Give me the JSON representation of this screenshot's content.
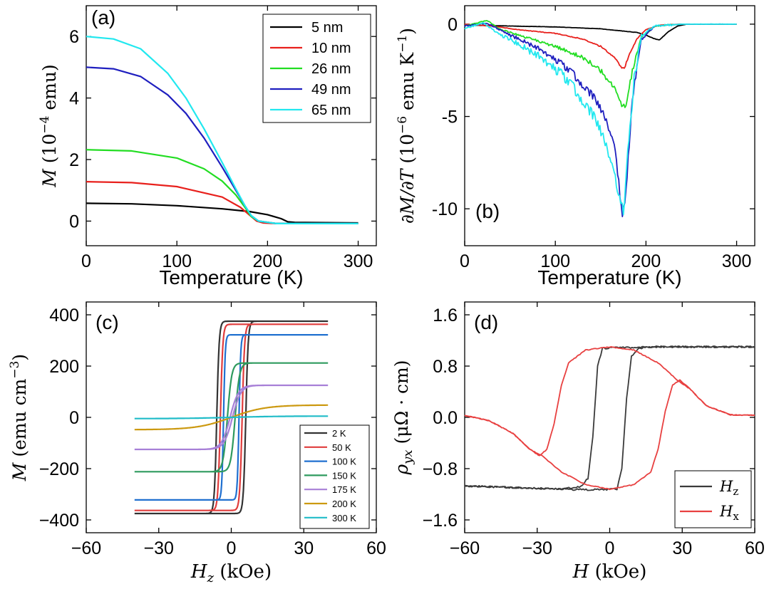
{
  "chart_data": [
    {
      "id": "a",
      "type": "line",
      "panel_label": "(a)",
      "xlabel": "Temperature (K)",
      "ylabel_main": "M",
      "ylabel_unit": "(10",
      "ylabel_exp": "−4",
      "ylabel_tail": " emu)",
      "xlim": [
        0,
        320
      ],
      "ylim": [
        -0.8,
        7
      ],
      "xticks": [
        "0",
        "100",
        "200",
        "300"
      ],
      "yticks": [
        "0",
        "2",
        "4",
        "6"
      ],
      "legend_position": "top-right",
      "series": [
        {
          "name": "5 nm",
          "color": "#000000",
          "x": [
            0,
            50,
            100,
            150,
            180,
            200,
            215,
            222,
            230,
            300
          ],
          "y": [
            0.58,
            0.56,
            0.5,
            0.4,
            0.31,
            0.21,
            0.08,
            -0.02,
            -0.04,
            -0.06
          ]
        },
        {
          "name": "10 nm",
          "color": "#e8201c",
          "x": [
            0,
            50,
            100,
            150,
            170,
            180,
            188,
            195,
            210,
            300
          ],
          "y": [
            1.28,
            1.25,
            1.12,
            0.78,
            0.45,
            0.2,
            0.0,
            -0.06,
            -0.08,
            -0.08
          ]
        },
        {
          "name": "26 nm",
          "color": "#22dd22",
          "x": [
            0,
            50,
            100,
            130,
            150,
            165,
            175,
            182,
            190,
            210,
            300
          ],
          "y": [
            2.32,
            2.28,
            2.05,
            1.7,
            1.3,
            0.85,
            0.45,
            0.15,
            0.0,
            -0.08,
            -0.08
          ]
        },
        {
          "name": "49 nm",
          "color": "#1f1fbf",
          "x": [
            0,
            30,
            60,
            90,
            110,
            130,
            150,
            165,
            175,
            182,
            190,
            210,
            300
          ],
          "y": [
            5.0,
            4.95,
            4.7,
            4.1,
            3.5,
            2.7,
            1.75,
            1.0,
            0.5,
            0.18,
            0.0,
            -0.08,
            -0.08
          ]
        },
        {
          "name": "65 nm",
          "color": "#22e8ef",
          "x": [
            0,
            30,
            60,
            90,
            110,
            130,
            150,
            165,
            175,
            182,
            190,
            210,
            300
          ],
          "y": [
            6.0,
            5.92,
            5.6,
            4.8,
            4.0,
            3.0,
            1.9,
            1.05,
            0.5,
            0.18,
            0.0,
            -0.08,
            -0.08
          ]
        }
      ]
    },
    {
      "id": "b",
      "type": "line",
      "panel_label": "(b)",
      "xlabel": "Temperature (K)",
      "ylabel_main": "∂M/∂T",
      "ylabel_unit": " (10",
      "ylabel_exp": "−6",
      "ylabel_tail": " emu K",
      "ylabel_exp2": "−1",
      "ylabel_close": ")",
      "xlim": [
        0,
        320
      ],
      "ylim": [
        -12,
        1
      ],
      "xticks": [
        "0",
        "100",
        "200",
        "300"
      ],
      "yticks": [
        "0",
        "-5",
        "-10"
      ],
      "series": [
        {
          "name": "5 nm",
          "color": "#000000",
          "x": [
            0,
            100,
            150,
            190,
            200,
            210,
            215,
            225,
            235,
            245,
            300
          ],
          "y": [
            -0.05,
            -0.15,
            -0.25,
            -0.45,
            -0.6,
            -0.8,
            -0.85,
            -0.4,
            -0.1,
            0.0,
            0.0
          ]
        },
        {
          "name": "10 nm",
          "color": "#e8201c",
          "x": [
            0,
            30,
            60,
            100,
            130,
            150,
            165,
            172,
            176,
            182,
            190,
            200,
            215,
            240,
            300
          ],
          "y": [
            0.0,
            -0.1,
            -0.3,
            -0.5,
            -0.8,
            -1.2,
            -1.8,
            -2.3,
            -2.4,
            -1.6,
            -0.8,
            -0.3,
            -0.05,
            0.0,
            0.0
          ]
        },
        {
          "name": "26 nm",
          "color": "#22dd22",
          "x": [
            0,
            25,
            40,
            60,
            100,
            130,
            150,
            165,
            172,
            178,
            185,
            195,
            210,
            240,
            300
          ],
          "y": [
            -0.1,
            0.2,
            -0.3,
            -0.6,
            -1.2,
            -1.8,
            -2.5,
            -3.4,
            -4.3,
            -4.4,
            -2.5,
            -0.7,
            -0.1,
            0.0,
            0.0
          ]
        },
        {
          "name": "49 nm",
          "color": "#1f1fbf",
          "x": [
            0,
            25,
            45,
            60,
            80,
            100,
            120,
            140,
            155,
            165,
            170,
            174,
            178,
            185,
            195,
            210,
            240,
            300
          ],
          "y": [
            -0.1,
            0.05,
            -0.5,
            -0.8,
            -1.3,
            -1.9,
            -2.7,
            -3.8,
            -5.0,
            -6.5,
            -8.5,
            -10.6,
            -9.0,
            -4.0,
            -0.8,
            -0.1,
            0.0,
            0.0
          ]
        },
        {
          "name": "65 nm",
          "color": "#22e8ef",
          "x": [
            0,
            20,
            40,
            60,
            80,
            100,
            120,
            140,
            155,
            165,
            172,
            175,
            180,
            187,
            195,
            210,
            240,
            300
          ],
          "y": [
            -0.2,
            0.05,
            -0.6,
            -1.1,
            -1.7,
            -2.4,
            -3.4,
            -4.8,
            -6.3,
            -8.0,
            -9.6,
            -10.2,
            -7.0,
            -3.0,
            -0.6,
            -0.1,
            0.0,
            0.0
          ]
        }
      ]
    },
    {
      "id": "c",
      "type": "line",
      "panel_label": "(c)",
      "xlabel_main": "H",
      "xlabel_sub": "z",
      "xlabel_tail": " (kOe)",
      "ylabel_main": "M",
      "ylabel_unit": " (emu cm",
      "ylabel_exp": "−3",
      "ylabel_close": ")",
      "xlim": [
        -60,
        60
      ],
      "ylim": [
        -450,
        450
      ],
      "xticks": [
        "−60",
        "−30",
        "0",
        "30",
        "60"
      ],
      "yticks": [
        "400",
        "200",
        "0",
        "−200",
        "−400"
      ],
      "legend_position": "bottom-right",
      "series": [
        {
          "name": "2 K",
          "color": "#333333",
          "Ms": 375,
          "Hc": 6,
          "w": 1.0
        },
        {
          "name": "50 K",
          "color": "#e03c3c",
          "Ms": 363,
          "Hc": 4.5,
          "w": 1.0
        },
        {
          "name": "100 K",
          "color": "#2070d0",
          "Ms": 322,
          "Hc": 3.2,
          "w": 0.7
        },
        {
          "name": "150 K",
          "color": "#2e9a5e",
          "Ms": 212,
          "Hc": 1.6,
          "w": 1.8
        },
        {
          "name": "175 K",
          "color": "#a77fd7",
          "Ms": 125,
          "Hc": 0.5,
          "w": 3.5
        },
        {
          "name": "200 K",
          "color": "#cc9910",
          "Ms": 48,
          "Hc": 0,
          "w": 14
        },
        {
          "name": "300 K",
          "color": "#20bcc8",
          "Ms": 5,
          "Hc": 0,
          "w": 20
        }
      ]
    },
    {
      "id": "d",
      "type": "line",
      "panel_label": "(d)",
      "xlabel_main": "H",
      "xlabel_tail": " (kOe)",
      "ylabel_main": "ρ",
      "ylabel_sub": "yx",
      "ylabel_unit": " (μΩ · cm)",
      "xlim": [
        -60,
        60
      ],
      "ylim": [
        -1.8,
        1.8
      ],
      "xticks": [
        "−60",
        "−30",
        "0",
        "30",
        "60"
      ],
      "yticks": [
        "1.6",
        "0.8",
        "0.0",
        "−0.8",
        "−1.6"
      ],
      "legend_position": "bottom-right",
      "series": [
        {
          "name": "H",
          "sub": "z",
          "color": "#3a3a3a",
          "up_x": [
            -60,
            -20,
            -8,
            3,
            5,
            7,
            9,
            12,
            20,
            60
          ],
          "up_y": [
            -1.07,
            -1.12,
            -1.13,
            -1.12,
            -0.8,
            0.3,
            0.95,
            1.08,
            1.1,
            1.1
          ],
          "down_x": [
            60,
            20,
            8,
            -3,
            -5,
            -7,
            -9,
            -12,
            -20,
            -60
          ],
          "down_y": [
            1.1,
            1.1,
            1.09,
            1.08,
            0.8,
            -0.3,
            -0.95,
            -1.08,
            -1.12,
            -1.07
          ]
        },
        {
          "name": "H",
          "sub": "x",
          "color": "#e84040",
          "up_x": [
            -60,
            -50,
            -40,
            -33,
            -28,
            -20,
            -10,
            0,
            10,
            17,
            20,
            23,
            26,
            29,
            33,
            40,
            50,
            60
          ],
          "up_y": [
            0.03,
            -0.05,
            -0.25,
            -0.5,
            -0.6,
            -0.85,
            -1.05,
            -1.12,
            -1.05,
            -0.85,
            -0.5,
            0.1,
            0.5,
            0.58,
            0.45,
            0.18,
            0.04,
            0.03
          ],
          "down_x": [
            60,
            50,
            40,
            33,
            28,
            20,
            10,
            0,
            -10,
            -17,
            -20,
            -23,
            -26,
            -29,
            -33,
            -40,
            -50,
            -60
          ],
          "down_y": [
            0.03,
            0.04,
            0.18,
            0.45,
            0.58,
            0.85,
            1.05,
            1.1,
            1.05,
            0.85,
            0.5,
            -0.1,
            -0.5,
            -0.6,
            -0.5,
            -0.25,
            -0.05,
            0.03
          ]
        }
      ]
    }
  ]
}
